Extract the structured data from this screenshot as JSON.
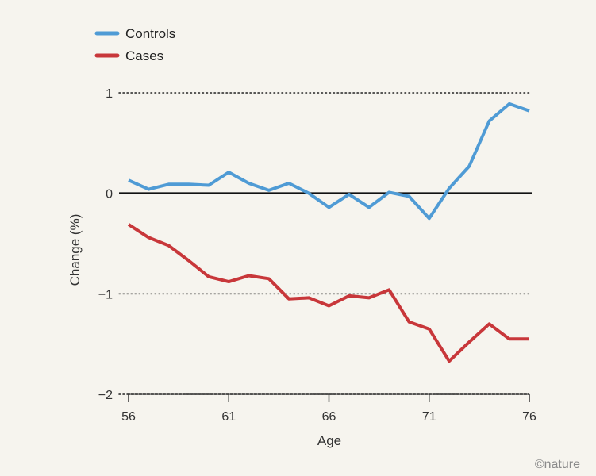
{
  "chart_data": {
    "type": "line",
    "title": "",
    "xlabel": "Age",
    "ylabel": "Change (%)",
    "xlim": [
      56,
      76
    ],
    "ylim": [
      -2,
      1
    ],
    "x_ticks": [
      56,
      61,
      66,
      71,
      76
    ],
    "y_ticks": [
      1,
      0,
      -1,
      -2
    ],
    "y_tick_labels": [
      "1",
      "0",
      "−1",
      "−2"
    ],
    "grid": "dotted horizontal at 1, -1, -2; solid line at 0",
    "legend": "top-left",
    "x": [
      56,
      57,
      58,
      59,
      60,
      61,
      62,
      63,
      64,
      65,
      66,
      67,
      68,
      69,
      70,
      71,
      72,
      73,
      74,
      75,
      76
    ],
    "series": [
      {
        "name": "Controls",
        "color": "#4f9bd5",
        "values": [
          0.13,
          0.04,
          0.09,
          0.09,
          0.08,
          0.21,
          0.1,
          0.03,
          0.1,
          0.0,
          -0.14,
          -0.01,
          -0.14,
          0.01,
          -0.03,
          -0.25,
          0.05,
          0.27,
          0.72,
          0.89,
          0.82
        ]
      },
      {
        "name": "Cases",
        "color": "#c8373a",
        "values": [
          -0.31,
          -0.44,
          -0.52,
          -0.67,
          -0.83,
          -0.88,
          -0.82,
          -0.85,
          -1.05,
          -1.04,
          -1.12,
          -1.02,
          -1.04,
          -0.96,
          -1.28,
          -1.35,
          -1.67,
          -1.48,
          -1.3,
          -1.45,
          -1.45
        ]
      }
    ]
  },
  "credit": "©nature"
}
